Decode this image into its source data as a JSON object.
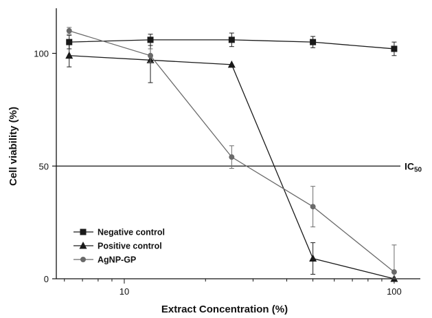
{
  "chart_data": {
    "type": "line",
    "xlabel": "Extract Concentration (%)",
    "ylabel": "Cell viability (%)",
    "x_scale": "log",
    "xlim": [
      5.6,
      125
    ],
    "ylim": [
      0,
      120
    ],
    "x_ticks": [
      10,
      100
    ],
    "y_ticks": [
      0,
      50,
      100
    ],
    "x_tick_labels": [
      "10",
      "100"
    ],
    "y_tick_labels": [
      "0",
      "50",
      "100"
    ],
    "grid": false,
    "legend_position": "bottom-left",
    "x": [
      6.25,
      12.5,
      25,
      50,
      100
    ],
    "series": [
      {
        "name": "Negative control",
        "marker": "square",
        "color": "#1a1a1a",
        "values": [
          105,
          106,
          106,
          105,
          102
        ],
        "errors": [
          3,
          2.5,
          3,
          2.5,
          3
        ]
      },
      {
        "name": "Positive control",
        "marker": "triangle",
        "color": "#1a1a1a",
        "values": [
          99,
          97,
          95,
          9,
          0
        ],
        "errors": [
          5,
          10,
          0,
          7,
          0
        ]
      },
      {
        "name": "AgNP-GP",
        "marker": "circle",
        "color": "#6a6a6a",
        "values": [
          110,
          99,
          54,
          32,
          3
        ],
        "errors": [
          1.5,
          3,
          5,
          9,
          12
        ]
      }
    ],
    "reference_line": {
      "y": 50,
      "label": "IC",
      "label_sub": "50"
    }
  }
}
